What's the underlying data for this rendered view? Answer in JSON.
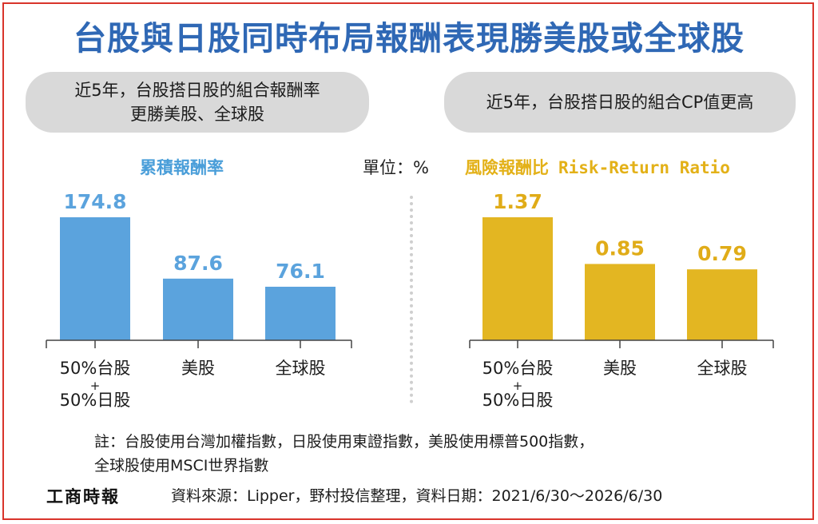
{
  "title": "台股與日股同時布局報酬表現勝美股或全球股",
  "pill_left": {
    "line1": "近5年，台股搭日股的組合報酬率",
    "line2": "更勝美股、全球股"
  },
  "pill_right": {
    "line1": "近5年，台股搭日股的組合CP值更高"
  },
  "unit": "單位：%",
  "chart_data": [
    {
      "type": "bar",
      "title": "累積報酬率",
      "categories": [
        "50%台股\n+\n50%日股",
        "美股",
        "全球股"
      ],
      "values": [
        174.8,
        87.6,
        76.1
      ],
      "value_labels": [
        "174.8",
        "87.6",
        "76.1"
      ],
      "color": "#5ba3dd",
      "label_color": "#5ba3dd",
      "ylim": [
        0,
        180
      ],
      "grid": false
    },
    {
      "type": "bar",
      "title": "風險報酬比",
      "title_en": "Risk-Return Ratio",
      "categories": [
        "50%台股\n+\n50%日股",
        "美股",
        "全球股"
      ],
      "values": [
        1.37,
        0.85,
        0.79
      ],
      "value_labels": [
        "1.37",
        "0.85",
        "0.79"
      ],
      "color": "#e3b622",
      "label_color": "#e0ac18",
      "ylim": [
        0,
        1.41
      ],
      "grid": false
    }
  ],
  "note": {
    "line1": "註：台股使用台灣加權指數，日股使用東證指數，美股使用標普500指數，",
    "line2": "全球股使用MSCI世界指數"
  },
  "logo": "工商時報",
  "source": "資料來源：Lipper，野村投信整理，資料日期：2021/6/30～2026/6/30"
}
